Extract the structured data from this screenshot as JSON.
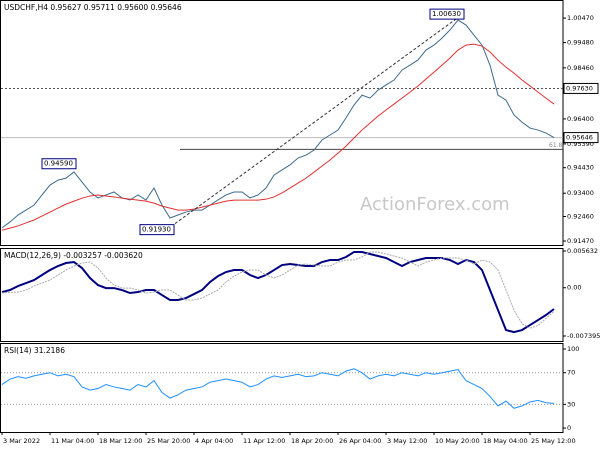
{
  "chart_data": [
    {
      "type": "line",
      "title": "USDCHF,H4 0.95627 0.95711 0.95600 0.95646",
      "watermark": "ActionForex.com",
      "series": [
        {
          "color": "#3d6a8c",
          "values": [
            0.92,
            0.9224,
            0.9252,
            0.9272,
            0.9292,
            0.9333,
            0.9373,
            0.9393,
            0.9401,
            0.9426,
            0.9385,
            0.9345,
            0.9321,
            0.9333,
            0.9345,
            0.9321,
            0.9313,
            0.9333,
            0.9313,
            0.9361,
            0.9292,
            0.924,
            0.9252,
            0.9264,
            0.9272,
            0.9272,
            0.9292,
            0.9313,
            0.9333,
            0.9345,
            0.9345,
            0.9321,
            0.9333,
            0.9361,
            0.9413,
            0.9434,
            0.9454,
            0.9482,
            0.9494,
            0.9514,
            0.9555,
            0.9575,
            0.9595,
            0.9644,
            0.9696,
            0.9736,
            0.9724,
            0.9756,
            0.9777,
            0.9797,
            0.9837,
            0.9857,
            0.9878,
            0.9918,
            0.9938,
            0.9966,
            0.9999,
            1.0039,
            1.0019,
            0.9978,
            0.9938,
            0.9857,
            0.9736,
            0.9716,
            0.9656,
            0.9627,
            0.9603,
            0.9595,
            0.9583,
            0.95646
          ]
        },
        {
          "color": "#e03030",
          "values": [
            0.9191,
            0.9199,
            0.9208,
            0.922,
            0.9232,
            0.9248,
            0.9264,
            0.928,
            0.9296,
            0.9308,
            0.932,
            0.9329,
            0.9333,
            0.9329,
            0.9325,
            0.932,
            0.9316,
            0.9312,
            0.9308,
            0.93,
            0.9288,
            0.928,
            0.9272,
            0.9272,
            0.9276,
            0.9284,
            0.9292,
            0.93,
            0.9308,
            0.9312,
            0.9312,
            0.9312,
            0.9312,
            0.9316,
            0.9325,
            0.9341,
            0.9361,
            0.9381,
            0.9401,
            0.9425,
            0.945,
            0.9474,
            0.9502,
            0.953,
            0.9563,
            0.9595,
            0.9623,
            0.9651,
            0.9676,
            0.97,
            0.9724,
            0.9748,
            0.9773,
            0.9801,
            0.9829,
            0.9857,
            0.9886,
            0.9918,
            0.9938,
            0.9942,
            0.9934,
            0.991,
            0.9877,
            0.9849,
            0.9825,
            0.9797,
            0.9773,
            0.9748,
            0.9724,
            0.97
          ]
        }
      ],
      "ylim": [
        0.9131,
        1.012
      ],
      "yticks": [
        {
          "value": 1.0047,
          "label": "1.00470"
        },
        {
          "value": 0.9948,
          "label": "0.99480"
        },
        {
          "value": 0.9846,
          "label": "0.98460"
        },
        {
          "value": 0.964,
          "label": "0.96400"
        },
        {
          "value": 0.9539,
          "label": "0.95390"
        },
        {
          "value": 0.9443,
          "label": "0.94430"
        },
        {
          "value": 0.934,
          "label": "0.93400"
        },
        {
          "value": 0.9246,
          "label": "0.92460"
        },
        {
          "value": 0.9147,
          "label": "0.91470"
        }
      ],
      "price_lines": [
        {
          "value": 0.9763,
          "label": "0.97630"
        },
        0.95646
      ],
      "fib_line": {
        "value": 0.9517,
        "label": "61.8"
      },
      "annotations": [
        {
          "value": 1.0063,
          "label": "1.00630"
        },
        {
          "value": 0.9459,
          "label": "0.94590"
        },
        {
          "value": 0.9193,
          "label": "0.91930"
        }
      ]
    },
    {
      "type": "line",
      "title": "MACD(12,26,9) -0.003257 -0.003620",
      "grid": true,
      "series": [
        {
          "color": "#000080",
          "values": [
            -0.00066,
            -0.00035,
            0.00026,
            0.00072,
            0.00118,
            0.00195,
            0.00271,
            0.00333,
            0.00379,
            0.00394,
            0.00302,
            0.00149,
            0.00041,
            -5e-05,
            -5e-05,
            -0.00035,
            -0.00081,
            -0.00066,
            -0.00035,
            -0.00035,
            -0.00112,
            -0.00188,
            -0.00188,
            -0.00158,
            -0.00097,
            -0.00035,
            0.00087,
            0.00179,
            0.00241,
            0.00271,
            0.00271,
            0.00195,
            0.00149,
            0.00195,
            0.00271,
            0.00348,
            0.00363,
            0.00348,
            0.00333,
            0.00333,
            0.00394,
            0.00425,
            0.00425,
            0.00471,
            0.00548,
            0.00548,
            0.00517,
            0.00486,
            0.00456,
            0.00394,
            0.00333,
            0.00394,
            0.00425,
            0.00456,
            0.00456,
            0.00456,
            0.00425,
            0.00363,
            0.00425,
            0.00394,
            0.00271,
            -0.00035,
            -0.00342,
            -0.00648,
            -0.00679,
            -0.00648,
            -0.00572,
            -0.00495,
            -0.00418,
            -0.003257
          ]
        },
        {
          "color": "#aaaaaa",
          "values": [
            -0.0008,
            -0.0007,
            -0.00066,
            -0.00035,
            0.00026,
            0.00072,
            0.00118,
            0.00195,
            0.00271,
            0.00333,
            0.00379,
            0.00394,
            0.00302,
            0.00149,
            0.00041,
            -5e-05,
            -5e-05,
            -0.00035,
            -0.00081,
            -0.00066,
            -0.00035,
            -0.00035,
            -0.00112,
            -0.00188,
            -0.00188,
            -0.00158,
            -0.00097,
            -0.00035,
            0.00087,
            0.00179,
            0.00241,
            0.00271,
            0.00271,
            0.00195,
            0.00149,
            0.00195,
            0.00271,
            0.00348,
            0.00363,
            0.00348,
            0.00333,
            0.00333,
            0.00394,
            0.00425,
            0.00425,
            0.00471,
            0.00548,
            0.00548,
            0.00517,
            0.00486,
            0.00456,
            0.00394,
            0.00333,
            0.00394,
            0.00425,
            0.00456,
            0.00456,
            0.00456,
            0.00425,
            0.00363,
            0.00425,
            0.00394,
            0.00271,
            -0.00035,
            -0.00342,
            -0.0055,
            -0.0062,
            -0.0058,
            -0.0047,
            -0.00362
          ]
        }
      ],
      "ylim": [
        -0.00816,
        0.00609
      ],
      "yticks": [
        0.005632,
        {
          "value": 0,
          "label": "0.00"
        },
        -0.007395
      ]
    },
    {
      "type": "line",
      "title": "RSI(14) 31.2186",
      "grid": true,
      "series": [
        {
          "color": "#1e90ff",
          "values": [
            55,
            62,
            65,
            63,
            66,
            68,
            70,
            66,
            68,
            65,
            52,
            48,
            50,
            55,
            52,
            50,
            48,
            55,
            52,
            60,
            45,
            38,
            42,
            48,
            50,
            52,
            58,
            60,
            62,
            60,
            58,
            52,
            55,
            62,
            66,
            64,
            66,
            68,
            65,
            66,
            70,
            68,
            66,
            72,
            75,
            70,
            62,
            66,
            68,
            66,
            70,
            68,
            66,
            70,
            68,
            70,
            72,
            74,
            60,
            55,
            50,
            40,
            28,
            34,
            25,
            28,
            33,
            35,
            32,
            31.2186
          ]
        }
      ],
      "ylim": [
        -5,
        107.6
      ],
      "yticks": [
        100,
        70,
        30,
        0
      ],
      "categories": [
        "3 Mar 2022",
        null,
        null,
        null,
        null,
        null,
        "11 Mar 04:00",
        null,
        null,
        null,
        null,
        null,
        "18 Mar 12:00",
        null,
        null,
        null,
        null,
        null,
        "25 Mar 20:00",
        null,
        null,
        null,
        null,
        null,
        "4 Apr 04:00",
        null,
        null,
        null,
        null,
        null,
        "11 Apr 12:00",
        null,
        null,
        null,
        null,
        null,
        "18 Apr 20:00",
        null,
        null,
        null,
        null,
        null,
        "26 Apr 04:00",
        null,
        null,
        null,
        null,
        null,
        "3 May 12:00",
        null,
        null,
        null,
        null,
        null,
        "10 May 20:00",
        null,
        null,
        null,
        null,
        null,
        "18 May 04:00",
        null,
        null,
        null,
        null,
        null,
        "25 May 12:00",
        null,
        null,
        null
      ]
    }
  ]
}
